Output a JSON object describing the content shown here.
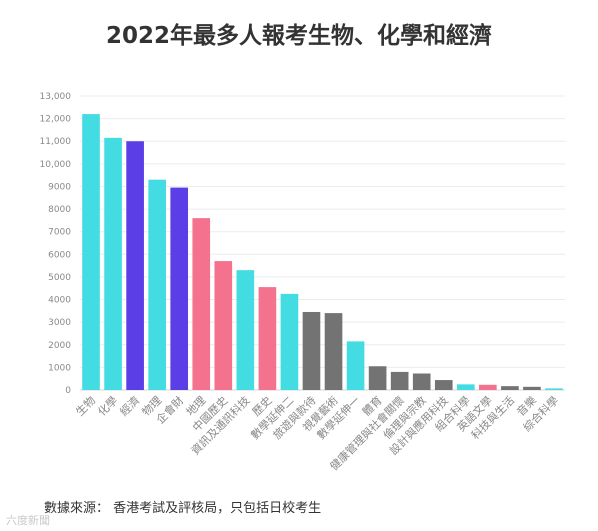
{
  "title": "2022年最多人報考生物、化學和經濟",
  "source": "數據來源： 香港考試及評核局，只包括日校考生",
  "watermark": "六度新聞",
  "colors": {
    "teal": "#44dce3",
    "purple": "#5b3ee6",
    "pink": "#f5728f",
    "gray": "#737373",
    "grid": "#ececec",
    "tick": "#8a8a8a"
  },
  "chart_data": {
    "type": "bar",
    "title": "2022年最多人報考生物、化學和經濟",
    "xlabel": "",
    "ylabel": "",
    "ylim": [
      0,
      13000
    ],
    "yticks": [
      0,
      1000,
      2000,
      3000,
      4000,
      5000,
      6000,
      7000,
      8000,
      9000,
      10000,
      11000,
      12000,
      13000
    ],
    "ytick_labels": [
      "0",
      "1000",
      "2000",
      "3000",
      "4000",
      "5000",
      "6000",
      "7000",
      "8000",
      "9000",
      "10,000",
      "11,000",
      "12,000",
      "13,000"
    ],
    "grid": true,
    "categories": [
      "生物",
      "化學",
      "經濟",
      "物理",
      "企會財",
      "地理",
      "中國歷史",
      "資訊及通訊科技",
      "歷史",
      "數學延伸二",
      "旅遊與款待",
      "視覺藝術",
      "數學延伸一",
      "體育",
      "健康管理與社會關懷",
      "倫理與宗教",
      "設計與應用科技",
      "組合科學",
      "英語文學",
      "科技與生活",
      "音樂",
      "綜合科學"
    ],
    "values": [
      12200,
      11150,
      11000,
      9300,
      8950,
      7600,
      5700,
      5300,
      4550,
      4250,
      3450,
      3400,
      2150,
      1050,
      800,
      730,
      440,
      250,
      230,
      170,
      140,
      70
    ],
    "bar_colors": [
      "teal",
      "teal",
      "purple",
      "teal",
      "purple",
      "pink",
      "pink",
      "teal",
      "pink",
      "teal",
      "gray",
      "gray",
      "teal",
      "gray",
      "gray",
      "gray",
      "gray",
      "teal",
      "pink",
      "gray",
      "gray",
      "teal"
    ]
  }
}
